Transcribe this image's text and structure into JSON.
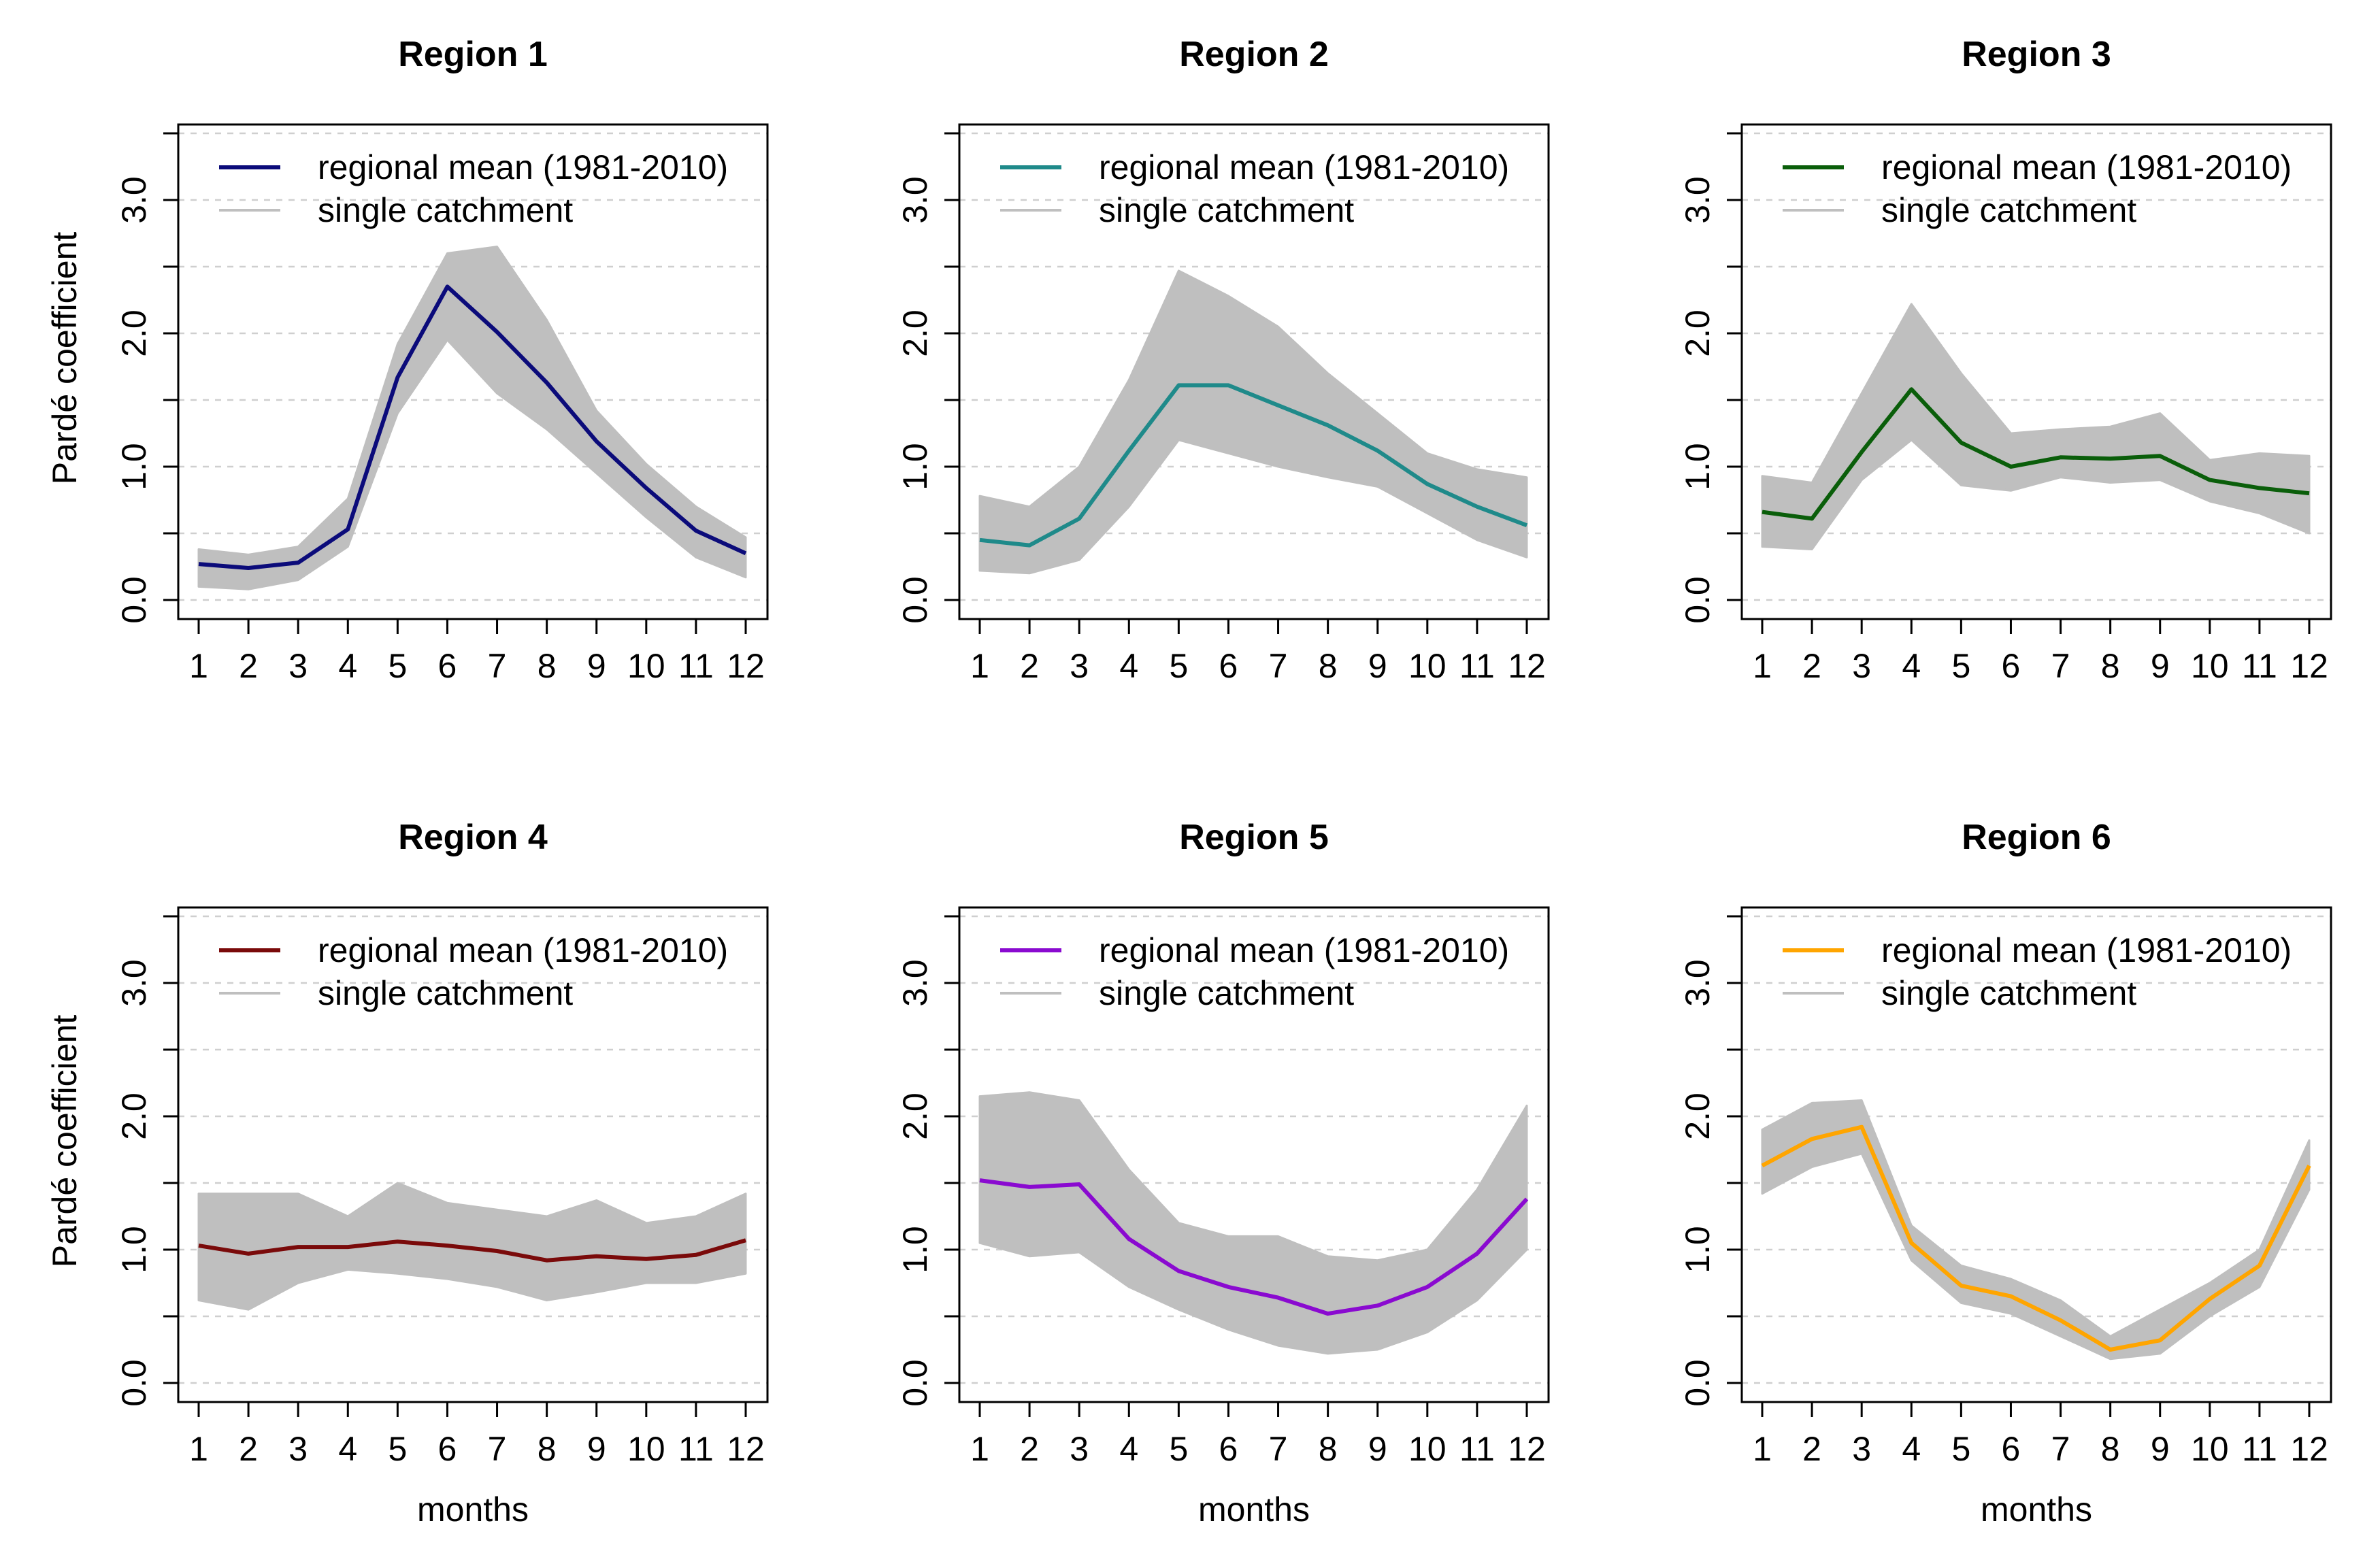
{
  "chart_data": [
    {
      "type": "line",
      "title": "Region 1",
      "xlabel": "",
      "ylabel": "Pardé coefficient",
      "categories": [
        1,
        2,
        3,
        4,
        5,
        6,
        7,
        8,
        9,
        10,
        11,
        12
      ],
      "xlim": [
        1,
        12
      ],
      "ylim": [
        0.0,
        3.5
      ],
      "yticks": [
        "0.0",
        "1.0",
        "2.0",
        "3.0"
      ],
      "grid": "dashed horizontal at 0.5 steps",
      "legend_position": "top-left",
      "legend": [
        "regional mean (1981-2010)",
        "single catchment"
      ],
      "series": [
        {
          "name": "regional mean (1981-2010)",
          "color": "#0b0b7a",
          "values": [
            0.27,
            0.24,
            0.28,
            0.53,
            1.67,
            2.35,
            2.01,
            1.63,
            1.19,
            0.84,
            0.52,
            0.35
          ]
        }
      ],
      "envelope": {
        "name": "single catchment",
        "color": "#bfbfbf",
        "lower": [
          0.1,
          0.08,
          0.15,
          0.4,
          1.4,
          1.95,
          1.55,
          1.28,
          0.95,
          0.62,
          0.32,
          0.17
        ],
        "upper": [
          0.38,
          0.34,
          0.4,
          0.76,
          1.92,
          2.6,
          2.65,
          2.1,
          1.42,
          1.02,
          0.7,
          0.47
        ]
      }
    },
    {
      "type": "line",
      "title": "Region 2",
      "xlabel": "",
      "ylabel": "",
      "categories": [
        1,
        2,
        3,
        4,
        5,
        6,
        7,
        8,
        9,
        10,
        11,
        12
      ],
      "xlim": [
        1,
        12
      ],
      "ylim": [
        0.0,
        3.5
      ],
      "yticks": [
        "0.0",
        "1.0",
        "2.0",
        "3.0"
      ],
      "grid": "dashed horizontal at 0.5 steps",
      "legend_position": "top-left",
      "legend": [
        "regional mean (1981-2010)",
        "single catchment"
      ],
      "series": [
        {
          "name": "regional mean (1981-2010)",
          "color": "#1f8a8a",
          "values": [
            0.45,
            0.41,
            0.61,
            1.12,
            1.61,
            1.61,
            1.46,
            1.31,
            1.12,
            0.87,
            0.7,
            0.56
          ]
        }
      ],
      "envelope": {
        "name": "single catchment",
        "color": "#bfbfbf",
        "lower": [
          0.22,
          0.2,
          0.3,
          0.7,
          1.2,
          1.1,
          1.0,
          0.92,
          0.85,
          0.65,
          0.45,
          0.32
        ],
        "upper": [
          0.78,
          0.7,
          1.0,
          1.65,
          2.47,
          2.28,
          2.05,
          1.7,
          1.4,
          1.1,
          0.98,
          0.92
        ]
      }
    },
    {
      "type": "line",
      "title": "Region 3",
      "xlabel": "",
      "ylabel": "",
      "categories": [
        1,
        2,
        3,
        4,
        5,
        6,
        7,
        8,
        9,
        10,
        11,
        12
      ],
      "xlim": [
        1,
        12
      ],
      "ylim": [
        0.0,
        3.5
      ],
      "yticks": [
        "0.0",
        "1.0",
        "2.0",
        "3.0"
      ],
      "grid": "dashed horizontal at 0.5 steps",
      "legend_position": "top-left",
      "legend": [
        "regional mean (1981-2010)",
        "single catchment"
      ],
      "series": [
        {
          "name": "regional mean (1981-2010)",
          "color": "#0a5e0a",
          "values": [
            0.66,
            0.61,
            1.11,
            1.58,
            1.18,
            1.0,
            1.07,
            1.06,
            1.08,
            0.9,
            0.84,
            0.8
          ]
        }
      ],
      "envelope": {
        "name": "single catchment",
        "color": "#bfbfbf",
        "lower": [
          0.4,
          0.38,
          0.9,
          1.2,
          0.86,
          0.82,
          0.92,
          0.88,
          0.9,
          0.74,
          0.65,
          0.5
        ],
        "upper": [
          0.93,
          0.88,
          1.55,
          2.22,
          1.7,
          1.25,
          1.28,
          1.3,
          1.4,
          1.05,
          1.1,
          1.08
        ]
      }
    },
    {
      "type": "line",
      "title": "Region 4",
      "xlabel": "months",
      "ylabel": "Pardé coefficient",
      "categories": [
        1,
        2,
        3,
        4,
        5,
        6,
        7,
        8,
        9,
        10,
        11,
        12
      ],
      "xlim": [
        1,
        12
      ],
      "ylim": [
        0.0,
        3.5
      ],
      "yticks": [
        "0.0",
        "1.0",
        "2.0",
        "3.0"
      ],
      "grid": "dashed horizontal at 0.5 steps",
      "legend_position": "top-left",
      "legend": [
        "regional mean (1981-2010)",
        "single catchment"
      ],
      "series": [
        {
          "name": "regional mean (1981-2010)",
          "color": "#7a0a0a",
          "values": [
            1.03,
            0.97,
            1.02,
            1.02,
            1.06,
            1.03,
            0.99,
            0.92,
            0.95,
            0.93,
            0.96,
            1.07
          ]
        }
      ],
      "envelope": {
        "name": "single catchment",
        "color": "#bfbfbf",
        "lower": [
          0.62,
          0.55,
          0.75,
          0.85,
          0.82,
          0.78,
          0.72,
          0.62,
          0.68,
          0.75,
          0.75,
          0.82
        ],
        "upper": [
          1.42,
          1.42,
          1.42,
          1.25,
          1.5,
          1.35,
          1.3,
          1.25,
          1.37,
          1.2,
          1.25,
          1.42
        ]
      }
    },
    {
      "type": "line",
      "title": "Region 5",
      "xlabel": "months",
      "ylabel": "",
      "categories": [
        1,
        2,
        3,
        4,
        5,
        6,
        7,
        8,
        9,
        10,
        11,
        12
      ],
      "xlim": [
        1,
        12
      ],
      "ylim": [
        0.0,
        3.5
      ],
      "yticks": [
        "0.0",
        "1.0",
        "2.0",
        "3.0"
      ],
      "grid": "dashed horizontal at 0.5 steps",
      "legend_position": "top-left",
      "legend": [
        "regional mean (1981-2010)",
        "single catchment"
      ],
      "series": [
        {
          "name": "regional mean (1981-2010)",
          "color": "#8a0ad0",
          "values": [
            1.52,
            1.47,
            1.49,
            1.08,
            0.84,
            0.72,
            0.64,
            0.52,
            0.58,
            0.72,
            0.97,
            1.38
          ]
        }
      ],
      "envelope": {
        "name": "single catchment",
        "color": "#bfbfbf",
        "lower": [
          1.05,
          0.95,
          0.98,
          0.72,
          0.55,
          0.4,
          0.28,
          0.22,
          0.25,
          0.38,
          0.62,
          1.0
        ],
        "upper": [
          2.15,
          2.18,
          2.12,
          1.6,
          1.2,
          1.1,
          1.1,
          0.95,
          0.92,
          1.0,
          1.45,
          2.08
        ]
      }
    },
    {
      "type": "line",
      "title": "Region 6",
      "xlabel": "months",
      "ylabel": "",
      "categories": [
        1,
        2,
        3,
        4,
        5,
        6,
        7,
        8,
        9,
        10,
        11,
        12
      ],
      "xlim": [
        1,
        12
      ],
      "ylim": [
        0.0,
        3.5
      ],
      "yticks": [
        "0.0",
        "1.0",
        "2.0",
        "3.0"
      ],
      "grid": "dashed horizontal at 0.5 steps",
      "legend_position": "top-left",
      "legend": [
        "regional mean (1981-2010)",
        "single catchment"
      ],
      "series": [
        {
          "name": "regional mean (1981-2010)",
          "color": "#ffa500",
          "values": [
            1.63,
            1.83,
            1.92,
            1.05,
            0.73,
            0.65,
            0.47,
            0.25,
            0.32,
            0.63,
            0.88,
            1.63
          ]
        }
      ],
      "envelope": {
        "name": "single catchment",
        "color": "#bfbfbf",
        "lower": [
          1.42,
          1.62,
          1.72,
          0.92,
          0.6,
          0.52,
          0.35,
          0.18,
          0.22,
          0.5,
          0.72,
          1.45
        ],
        "upper": [
          1.9,
          2.1,
          2.12,
          1.18,
          0.88,
          0.78,
          0.62,
          0.35,
          0.55,
          0.75,
          1.0,
          1.82
        ]
      }
    }
  ]
}
